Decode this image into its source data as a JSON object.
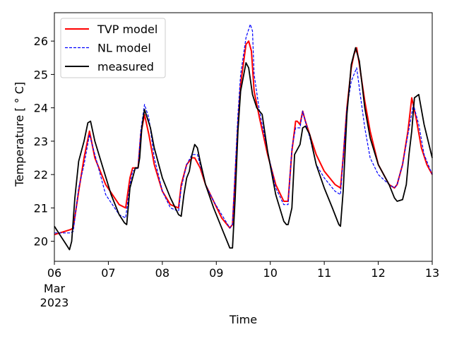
{
  "chart_data": {
    "type": "line",
    "xlabel": "Time",
    "ylabel": "Temperature [$^\\circ$C]",
    "ylabel_display": "Temperature [ ° C]",
    "x_unit": "day-of-month (March 2023)",
    "xlim": [
      6,
      13
    ],
    "ylim": [
      19.4,
      26.85
    ],
    "x_ticks": [
      6,
      7,
      8,
      9,
      10,
      11,
      12,
      13
    ],
    "x_tick_labels": [
      "06",
      "07",
      "08",
      "09",
      "10",
      "11",
      "12",
      "13"
    ],
    "x_tick_sublabels": [
      "Mar",
      "2023"
    ],
    "y_ticks": [
      20,
      21,
      22,
      23,
      24,
      25,
      26
    ],
    "y_tick_labels": [
      "20",
      "21",
      "22",
      "23",
      "24",
      "25",
      "26"
    ],
    "grid": false,
    "legend_position": "top-left",
    "series": [
      {
        "name": "TVP model",
        "color": "#ff0000",
        "style": "solid",
        "x": [
          6.0,
          6.3,
          6.35,
          6.45,
          6.55,
          6.65,
          6.75,
          6.95,
          7.2,
          7.32,
          7.4,
          7.45,
          7.55,
          7.6,
          7.67,
          7.75,
          7.85,
          8.0,
          8.15,
          8.3,
          8.35,
          8.45,
          8.55,
          8.6,
          8.7,
          8.8,
          8.95,
          9.1,
          9.25,
          9.3,
          9.4,
          9.45,
          9.55,
          9.6,
          9.65,
          9.7,
          9.8,
          9.95,
          10.1,
          10.25,
          10.33,
          10.4,
          10.47,
          10.5,
          10.55,
          10.6,
          10.65,
          10.75,
          10.85,
          11.0,
          11.2,
          11.3,
          11.35,
          11.42,
          11.5,
          11.55,
          11.6,
          11.65,
          11.75,
          11.85,
          12.0,
          12.2,
          12.3,
          12.35,
          12.45,
          12.55,
          12.62,
          12.7,
          12.8,
          12.9,
          13.0
        ],
        "y": [
          20.2,
          20.35,
          20.4,
          21.5,
          22.5,
          23.3,
          22.5,
          21.7,
          21.1,
          21.0,
          21.9,
          22.2,
          22.2,
          23.2,
          23.8,
          23.2,
          22.3,
          21.5,
          21.1,
          21.0,
          21.7,
          22.3,
          22.5,
          22.5,
          22.2,
          21.7,
          21.2,
          20.7,
          20.4,
          20.5,
          23.5,
          24.7,
          25.9,
          26.0,
          25.7,
          24.5,
          23.7,
          22.6,
          21.7,
          21.2,
          21.2,
          22.7,
          23.6,
          23.6,
          23.5,
          23.9,
          23.6,
          23.1,
          22.6,
          22.1,
          21.7,
          21.6,
          22.5,
          24.0,
          25.2,
          25.6,
          25.8,
          25.3,
          24.2,
          23.3,
          22.3,
          21.7,
          21.6,
          21.7,
          22.3,
          23.3,
          24.3,
          23.7,
          22.8,
          22.3,
          22.0
        ]
      },
      {
        "name": "NL model",
        "color": "#0000ff",
        "style": "dashed",
        "x": [
          6.0,
          6.3,
          6.35,
          6.45,
          6.55,
          6.65,
          6.75,
          6.95,
          7.2,
          7.32,
          7.4,
          7.45,
          7.55,
          7.6,
          7.67,
          7.75,
          7.85,
          8.0,
          8.15,
          8.3,
          8.35,
          8.45,
          8.55,
          8.65,
          8.7,
          8.8,
          8.95,
          9.1,
          9.25,
          9.3,
          9.4,
          9.45,
          9.55,
          9.63,
          9.67,
          9.7,
          9.8,
          9.95,
          10.1,
          10.25,
          10.33,
          10.4,
          10.47,
          10.55,
          10.6,
          10.65,
          10.75,
          10.85,
          11.0,
          11.2,
          11.3,
          11.35,
          11.42,
          11.5,
          11.6,
          11.65,
          11.75,
          11.85,
          12.0,
          12.2,
          12.3,
          12.35,
          12.45,
          12.55,
          12.65,
          12.75,
          12.85,
          13.0
        ],
        "y": [
          20.25,
          20.25,
          20.3,
          21.6,
          22.3,
          23.2,
          22.6,
          21.4,
          20.8,
          20.7,
          21.7,
          22.1,
          22.2,
          23.3,
          24.1,
          23.7,
          22.5,
          21.5,
          21.0,
          20.9,
          21.6,
          22.3,
          22.6,
          22.6,
          22.3,
          21.7,
          21.2,
          20.8,
          20.4,
          20.5,
          23.8,
          25.0,
          26.1,
          26.5,
          26.3,
          25.0,
          23.9,
          22.7,
          21.6,
          21.1,
          21.1,
          22.8,
          23.4,
          23.4,
          23.9,
          23.6,
          23.0,
          22.3,
          21.9,
          21.5,
          21.4,
          22.5,
          24.0,
          24.8,
          25.2,
          24.6,
          23.4,
          22.5,
          22.0,
          21.7,
          21.6,
          21.7,
          22.3,
          23.2,
          24.1,
          23.5,
          22.6,
          22.0
        ]
      },
      {
        "name": "measured",
        "color": "#000000",
        "style": "solid",
        "x": [
          6.0,
          6.1,
          6.2,
          6.28,
          6.32,
          6.38,
          6.45,
          6.55,
          6.62,
          6.67,
          6.75,
          6.9,
          7.05,
          7.2,
          7.3,
          7.34,
          7.4,
          7.45,
          7.5,
          7.55,
          7.58,
          7.62,
          7.67,
          7.72,
          7.78,
          7.85,
          8.0,
          8.15,
          8.3,
          8.35,
          8.4,
          8.45,
          8.5,
          8.55,
          8.6,
          8.65,
          8.7,
          8.8,
          8.95,
          9.1,
          9.25,
          9.3,
          9.35,
          9.4,
          9.45,
          9.55,
          9.6,
          9.67,
          9.75,
          9.85,
          9.95,
          10.1,
          10.25,
          10.3,
          10.33,
          10.4,
          10.45,
          10.55,
          10.6,
          10.65,
          10.73,
          10.85,
          11.0,
          11.15,
          11.27,
          11.3,
          11.35,
          11.42,
          11.5,
          11.58,
          11.65,
          11.75,
          11.85,
          12.0,
          12.2,
          12.3,
          12.35,
          12.45,
          12.52,
          12.57,
          12.62,
          12.67,
          12.75,
          12.85,
          13.0
        ],
        "y": [
          20.45,
          20.2,
          19.95,
          19.75,
          20.0,
          21.3,
          22.4,
          23.0,
          23.55,
          23.6,
          23.0,
          22.2,
          21.4,
          20.8,
          20.55,
          20.5,
          21.6,
          21.9,
          22.2,
          22.2,
          22.5,
          23.4,
          23.95,
          23.7,
          23.4,
          22.8,
          21.9,
          21.3,
          20.8,
          20.75,
          21.4,
          21.9,
          22.1,
          22.6,
          22.9,
          22.8,
          22.4,
          21.7,
          21.0,
          20.4,
          19.8,
          19.8,
          21.3,
          23.3,
          24.5,
          25.35,
          25.2,
          24.4,
          24.0,
          23.8,
          22.7,
          21.4,
          20.6,
          20.5,
          20.5,
          21.0,
          22.6,
          22.9,
          23.4,
          23.45,
          23.2,
          22.3,
          21.6,
          21.0,
          20.5,
          20.45,
          21.5,
          23.8,
          25.3,
          25.8,
          25.4,
          24.0,
          23.1,
          22.3,
          21.7,
          21.3,
          21.2,
          21.25,
          21.7,
          22.6,
          23.3,
          24.3,
          24.4,
          23.5,
          22.5
        ]
      }
    ]
  }
}
